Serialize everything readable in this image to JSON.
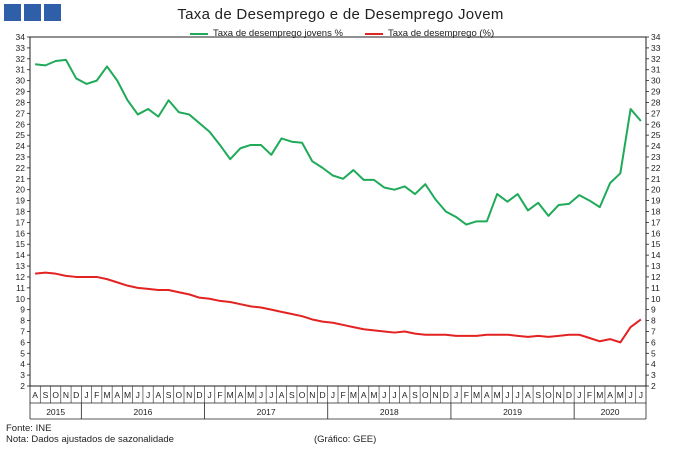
{
  "header": {
    "title": "Taxa de Desemprego e de Desemprego Jovem"
  },
  "colors": {
    "youth": "#1faa59",
    "total": "#e32222",
    "brand": "#2f5fa8"
  },
  "footer": {
    "source": "Fonte: INE",
    "note": "Nota: Dados ajustados de sazonalidade",
    "credit": "(Gráfico: GEE)"
  },
  "chart_data": {
    "type": "line",
    "title": "Taxa de Desemprego e de Desemprego Jovem",
    "ylim": [
      2,
      34
    ],
    "yticks": [
      2,
      3,
      4,
      5,
      6,
      7,
      8,
      9,
      10,
      11,
      12,
      13,
      14,
      15,
      16,
      17,
      18,
      19,
      20,
      21,
      22,
      23,
      24,
      25,
      26,
      27,
      28,
      29,
      30,
      31,
      32,
      33,
      34
    ],
    "grid": false,
    "legend_position": "top",
    "x": [
      "2015-08",
      "2015-09",
      "2015-10",
      "2015-11",
      "2015-12",
      "2016-01",
      "2016-02",
      "2016-03",
      "2016-04",
      "2016-05",
      "2016-06",
      "2016-07",
      "2016-08",
      "2016-09",
      "2016-10",
      "2016-11",
      "2016-12",
      "2017-01",
      "2017-02",
      "2017-03",
      "2017-04",
      "2017-05",
      "2017-06",
      "2017-07",
      "2017-08",
      "2017-09",
      "2017-10",
      "2017-11",
      "2017-12",
      "2018-01",
      "2018-02",
      "2018-03",
      "2018-04",
      "2018-05",
      "2018-06",
      "2018-07",
      "2018-08",
      "2018-09",
      "2018-10",
      "2018-11",
      "2018-12",
      "2019-01",
      "2019-02",
      "2019-03",
      "2019-04",
      "2019-05",
      "2019-06",
      "2019-07",
      "2019-08",
      "2019-09",
      "2019-10",
      "2019-11",
      "2019-12",
      "2020-01",
      "2020-02",
      "2020-03",
      "2020-04",
      "2020-05",
      "2020-06",
      "2020-07"
    ],
    "month_labels": [
      "A",
      "S",
      "O",
      "N",
      "D",
      "J",
      "F",
      "M",
      "A",
      "M",
      "J",
      "J",
      "A",
      "S",
      "O",
      "N",
      "D",
      "J",
      "F",
      "M",
      "A",
      "M",
      "J",
      "J",
      "A",
      "S",
      "O",
      "N",
      "D",
      "J",
      "F",
      "M",
      "A",
      "M",
      "J",
      "J",
      "A",
      "S",
      "O",
      "N",
      "D",
      "J",
      "F",
      "M",
      "A",
      "M",
      "J",
      "J",
      "A",
      "S",
      "O",
      "N",
      "D",
      "J",
      "F",
      "M",
      "A",
      "M",
      "J",
      "J"
    ],
    "year_labels": [
      {
        "label": "2015",
        "start": 0,
        "end": 4
      },
      {
        "label": "2016",
        "start": 5,
        "end": 16
      },
      {
        "label": "2017",
        "start": 17,
        "end": 28
      },
      {
        "label": "2018",
        "start": 29,
        "end": 40
      },
      {
        "label": "2019",
        "start": 41,
        "end": 52
      },
      {
        "label": "2020",
        "start": 53,
        "end": 59
      }
    ],
    "series": [
      {
        "name": "Taxa de desemprego jovens %",
        "color": "#1faa59",
        "values": [
          31.5,
          31.4,
          31.8,
          31.9,
          30.2,
          29.7,
          30.0,
          31.3,
          30.0,
          28.2,
          26.9,
          27.4,
          26.7,
          28.2,
          27.1,
          26.9,
          26.1,
          25.3,
          24.1,
          22.8,
          23.8,
          24.1,
          24.1,
          23.2,
          24.7,
          24.4,
          24.3,
          22.6,
          22.0,
          21.3,
          21.0,
          21.8,
          20.9,
          20.9,
          20.2,
          20.0,
          20.3,
          19.6,
          20.5,
          19.1,
          18.0,
          17.5,
          16.8,
          17.1,
          17.1,
          19.6,
          18.9,
          19.6,
          18.1,
          18.8,
          17.6,
          18.6,
          18.7,
          19.5,
          19.0,
          18.4,
          20.6,
          21.5,
          27.4,
          26.3
        ]
      },
      {
        "name": "Taxa de desemprego (%)",
        "color": "#e32222",
        "values": [
          12.3,
          12.4,
          12.3,
          12.1,
          12.0,
          12.0,
          12.0,
          11.8,
          11.5,
          11.2,
          11.0,
          10.9,
          10.8,
          10.8,
          10.6,
          10.4,
          10.1,
          10.0,
          9.8,
          9.7,
          9.5,
          9.3,
          9.2,
          9.0,
          8.8,
          8.6,
          8.4,
          8.1,
          7.9,
          7.8,
          7.6,
          7.4,
          7.2,
          7.1,
          7.0,
          6.9,
          7.0,
          6.8,
          6.7,
          6.7,
          6.7,
          6.6,
          6.6,
          6.6,
          6.7,
          6.7,
          6.7,
          6.6,
          6.5,
          6.6,
          6.5,
          6.6,
          6.7,
          6.7,
          6.4,
          6.1,
          6.3,
          6.0,
          7.4,
          8.1
        ]
      }
    ]
  }
}
